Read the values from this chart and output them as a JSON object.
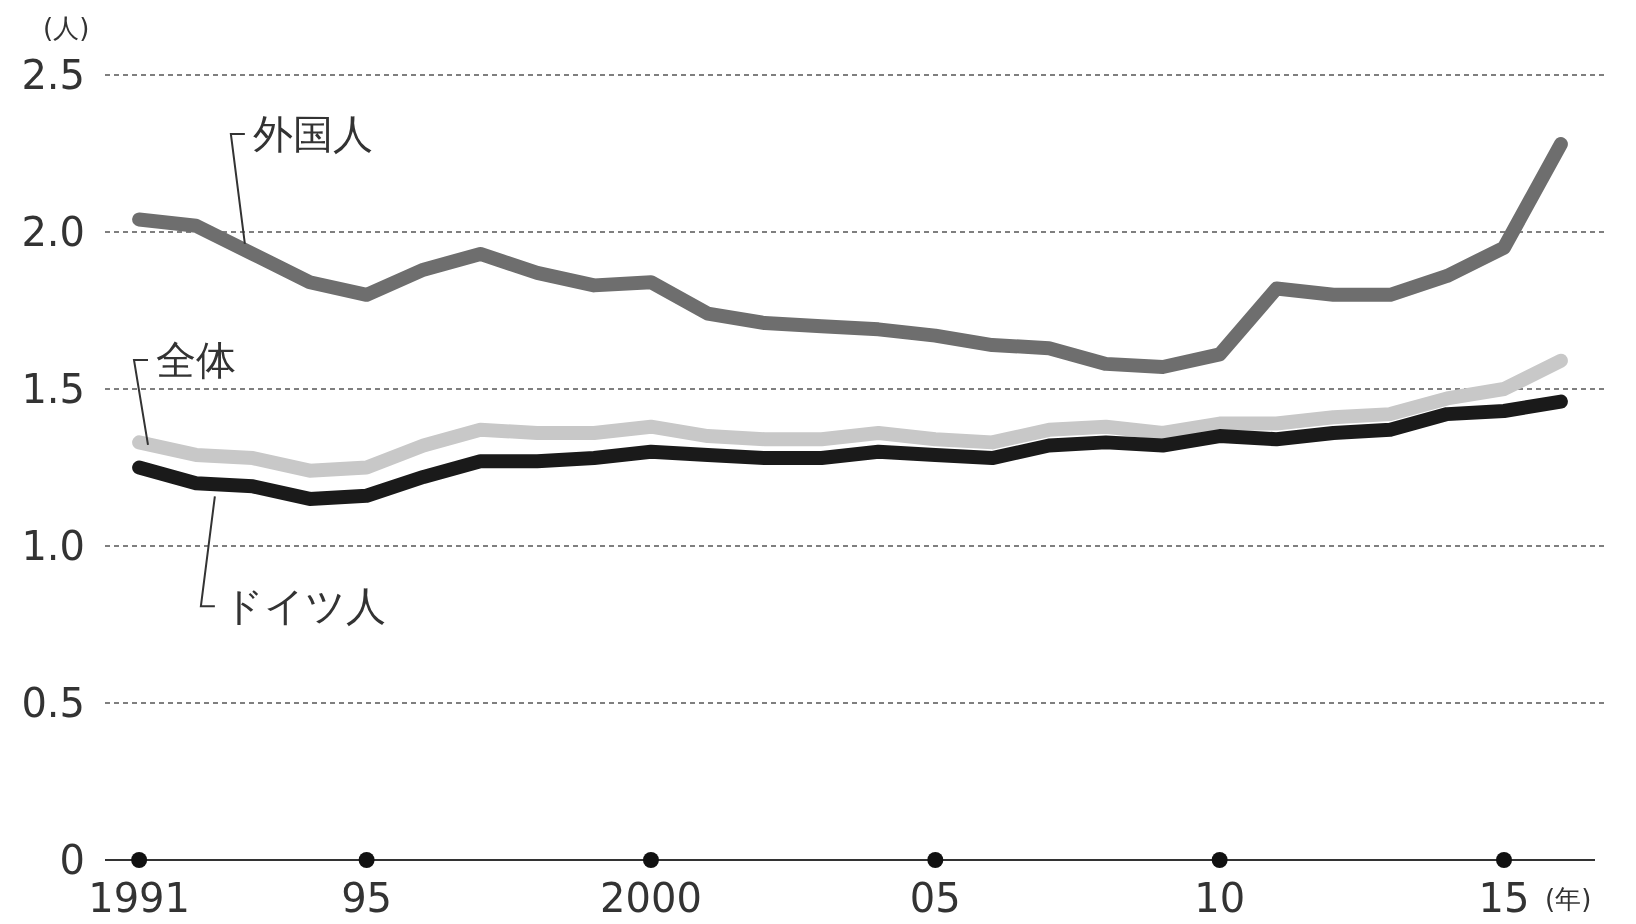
{
  "chart_data": {
    "type": "line",
    "ylabel": "(人)",
    "xlabel": "(年)",
    "x": [
      1991,
      1992,
      1993,
      1994,
      1995,
      1996,
      1997,
      1998,
      1999,
      2000,
      2001,
      2002,
      2003,
      2004,
      2005,
      2006,
      2007,
      2008,
      2009,
      2010,
      2011,
      2012,
      2013,
      2014,
      2015,
      2016
    ],
    "series": [
      {
        "name": "外国人",
        "color": "#6e6e6e",
        "values": [
          2.04,
          2.02,
          1.93,
          1.84,
          1.8,
          1.88,
          1.93,
          1.87,
          1.83,
          1.84,
          1.74,
          1.71,
          1.7,
          1.69,
          1.67,
          1.64,
          1.63,
          1.58,
          1.57,
          1.61,
          1.82,
          1.8,
          1.8,
          1.86,
          1.95,
          2.28
        ]
      },
      {
        "name": "全体",
        "color": "#c8c8c8",
        "values": [
          1.33,
          1.29,
          1.28,
          1.24,
          1.25,
          1.32,
          1.37,
          1.36,
          1.36,
          1.38,
          1.35,
          1.34,
          1.34,
          1.36,
          1.34,
          1.33,
          1.37,
          1.38,
          1.36,
          1.39,
          1.39,
          1.41,
          1.42,
          1.47,
          1.5,
          1.59
        ]
      },
      {
        "name": "ドイツ人",
        "color": "#1a1a1a",
        "values": [
          1.25,
          1.2,
          1.19,
          1.15,
          1.16,
          1.22,
          1.27,
          1.27,
          1.28,
          1.3,
          1.29,
          1.28,
          1.28,
          1.3,
          1.29,
          1.28,
          1.32,
          1.33,
          1.32,
          1.35,
          1.34,
          1.36,
          1.37,
          1.42,
          1.43,
          1.46
        ]
      }
    ],
    "xlim": [
      1990.4,
      2016.6
    ],
    "xticks": [
      1991,
      {
        "value": 1995,
        "label": "95"
      },
      2000,
      {
        "value": 2005,
        "label": "05"
      },
      {
        "value": 2010,
        "label": "10"
      },
      {
        "value": 2015,
        "label": "15"
      }
    ],
    "ylim": [
      0,
      2.5
    ],
    "yticks": [
      0,
      0.5,
      {
        "value": 1,
        "label": "1.0"
      },
      1.5,
      {
        "value": 2,
        "label": "2.0"
      },
      2.5
    ],
    "grid": "y",
    "legend": false,
    "marker": "none",
    "line_style": "solid"
  }
}
